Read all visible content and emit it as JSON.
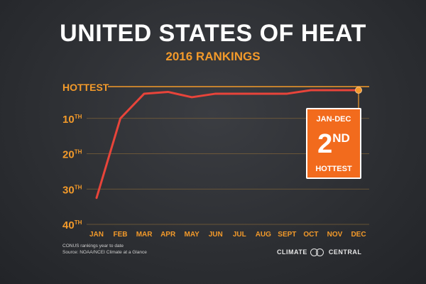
{
  "title": "UNITED STATES OF HEAT",
  "subtitle": "2016 RANKINGS",
  "chart_data": {
    "type": "line",
    "x": [
      "JAN",
      "FEB",
      "MAR",
      "APR",
      "MAY",
      "JUN",
      "JUL",
      "AUG",
      "SEPT",
      "OCT",
      "NOV",
      "DEC"
    ],
    "series": [
      {
        "values": [
          32.5,
          10,
          3,
          2.5,
          4,
          3,
          3,
          3,
          3,
          2,
          2,
          2
        ]
      }
    ],
    "y_axis": {
      "inverted": true,
      "range": [
        1,
        40
      ],
      "ticks": [
        {
          "value": 1,
          "label": "HOTTEST",
          "sup": ""
        },
        {
          "value": 10,
          "label": "10",
          "sup": "TH"
        },
        {
          "value": 20,
          "label": "20",
          "sup": "TH"
        },
        {
          "value": 30,
          "label": "30",
          "sup": "TH"
        },
        {
          "value": 40,
          "label": "40",
          "sup": "TH"
        }
      ]
    },
    "grid": true,
    "line_color": "#e8443a",
    "accent_color": "#f39a2a",
    "callout": {
      "line1": "JAN-DEC",
      "big": "2",
      "big_sup": "ND",
      "line3": "HOTTEST",
      "color": "#f26b1d"
    }
  },
  "footnote": {
    "line1": "CONUS rankings year to date",
    "line2": "Source: NOAA/NCEI Climate at a Glance"
  },
  "brand": {
    "left": "CLIMATE",
    "right": "CENTRAL"
  }
}
